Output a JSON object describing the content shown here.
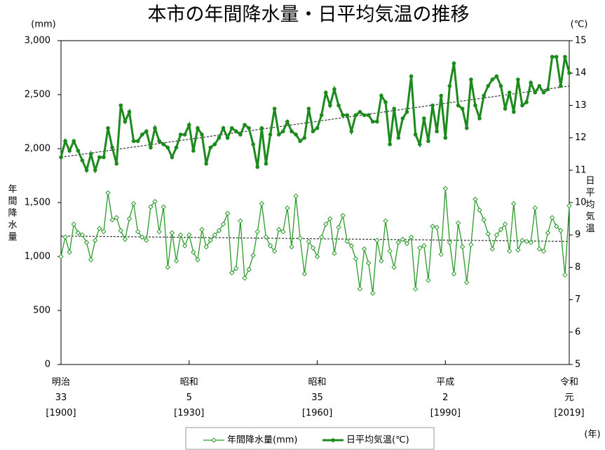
{
  "chart_data": {
    "type": "line",
    "title": "本市の年間降水量・日平均気温の推移",
    "y_unit": "(mm)",
    "y2_unit": "(℃)",
    "x_unit": "(年)",
    "ylabel": "年間降水量",
    "y2label": "日平均気温",
    "x": [
      1900,
      1901,
      1902,
      1903,
      1904,
      1905,
      1906,
      1907,
      1908,
      1909,
      1910,
      1911,
      1912,
      1913,
      1914,
      1915,
      1916,
      1917,
      1918,
      1919,
      1920,
      1921,
      1922,
      1923,
      1924,
      1925,
      1926,
      1927,
      1928,
      1929,
      1930,
      1931,
      1932,
      1933,
      1934,
      1935,
      1936,
      1937,
      1938,
      1939,
      1940,
      1941,
      1942,
      1943,
      1944,
      1945,
      1946,
      1947,
      1948,
      1949,
      1950,
      1951,
      1952,
      1953,
      1954,
      1955,
      1956,
      1957,
      1958,
      1959,
      1960,
      1961,
      1962,
      1963,
      1964,
      1965,
      1966,
      1967,
      1968,
      1969,
      1970,
      1971,
      1972,
      1973,
      1974,
      1975,
      1976,
      1977,
      1978,
      1979,
      1980,
      1981,
      1982,
      1983,
      1984,
      1985,
      1986,
      1987,
      1988,
      1989,
      1990,
      1991,
      1992,
      1993,
      1994,
      1995,
      1996,
      1997,
      1998,
      1999,
      2000,
      2001,
      2002,
      2003,
      2004,
      2005,
      2006,
      2007,
      2008,
      2009,
      2010,
      2011,
      2012,
      2013,
      2014,
      2015,
      2016,
      2017,
      2018,
      2019
    ],
    "xlim": [
      1900,
      2019
    ],
    "xticks": [
      {
        "value": 1900,
        "label": "明治\n33\n[1900]"
      },
      {
        "value": 1930,
        "label": "昭和\n5\n[1930]"
      },
      {
        "value": 1960,
        "label": "昭和\n35\n[1960]"
      },
      {
        "value": 1990,
        "label": "平成\n2\n[1990]"
      },
      {
        "value": 2019,
        "label": "令和\n元\n[2019]"
      }
    ],
    "ylim": [
      0,
      3000
    ],
    "yticks": [
      0,
      500,
      {
        "value": 1000,
        "label": "1,000"
      },
      {
        "value": 1500,
        "label": "1,500"
      },
      {
        "value": 2000,
        "label": "2,000"
      },
      {
        "value": 2500,
        "label": "2,500"
      },
      {
        "value": 3000,
        "label": "3,000"
      }
    ],
    "y2lim": [
      5,
      15
    ],
    "y2ticks": [
      5,
      6,
      7,
      8,
      9,
      10,
      11,
      12,
      13,
      14,
      15
    ],
    "series": [
      {
        "name": "年間降水量(mm)",
        "color": "#2a9a2a",
        "marker": "diamond",
        "trend": [
          1190,
          1140
        ],
        "values": [
          1000,
          1180,
          1040,
          1300,
          1220,
          1200,
          1130,
          970,
          1150,
          1260,
          1230,
          1590,
          1340,
          1360,
          1240,
          1160,
          1350,
          1490,
          1230,
          1180,
          1150,
          1460,
          1510,
          1230,
          1460,
          900,
          1220,
          960,
          1200,
          1100,
          1200,
          1040,
          970,
          1250,
          1090,
          1150,
          1200,
          1240,
          1300,
          1400,
          850,
          890,
          1330,
          800,
          880,
          1010,
          1230,
          1490,
          1180,
          1100,
          1050,
          1250,
          1230,
          1450,
          1090,
          1560,
          1170,
          840,
          1140,
          1080,
          1000,
          1180,
          1300,
          1350,
          1030,
          1270,
          1380,
          1140,
          1100,
          980,
          700,
          1070,
          940,
          660,
          1150,
          960,
          1330,
          1050,
          900,
          1130,
          1160,
          1120,
          1180,
          700,
          1080,
          1100,
          780,
          1280,
          1270,
          1020,
          1630,
          1130,
          840,
          1310,
          1090,
          760,
          1110,
          1530,
          1430,
          1340,
          1210,
          1070,
          1200,
          1250,
          1300,
          1050,
          1490,
          1060,
          1150,
          1140,
          1130,
          1450,
          1070,
          1050,
          1220,
          1360,
          1280,
          1240,
          830,
          1470
        ]
      },
      {
        "name": "日平均気温(℃)",
        "color": "#1c8a1c",
        "marker": "circle",
        "axis": "y2",
        "trend": [
          11.4,
          13.6
        ],
        "values": [
          11.4,
          11.9,
          11.6,
          11.9,
          11.6,
          11.3,
          11.0,
          11.5,
          11.0,
          11.4,
          11.4,
          12.3,
          11.7,
          11.2,
          13.0,
          12.5,
          12.8,
          11.9,
          11.9,
          12.1,
          12.2,
          11.7,
          12.3,
          11.9,
          11.8,
          11.7,
          11.4,
          11.7,
          12.1,
          12.1,
          12.4,
          11.6,
          12.3,
          12.1,
          11.2,
          11.7,
          11.8,
          12.0,
          12.3,
          12.0,
          12.3,
          12.2,
          12.1,
          12.4,
          12.3,
          11.8,
          11.1,
          12.3,
          11.2,
          12.1,
          12.9,
          12.1,
          12.2,
          12.5,
          12.2,
          12.1,
          11.9,
          12.0,
          12.9,
          12.2,
          12.3,
          12.7,
          13.4,
          13.0,
          13.5,
          13.0,
          12.7,
          12.7,
          12.2,
          12.7,
          12.8,
          12.7,
          12.7,
          12.5,
          12.5,
          13.3,
          13.1,
          11.8,
          12.9,
          12.0,
          12.6,
          12.8,
          13.9,
          12.1,
          11.8,
          12.6,
          11.9,
          13.0,
          12.2,
          13.3,
          12.0,
          13.6,
          14.3,
          13.0,
          12.9,
          12.3,
          13.8,
          13.0,
          12.6,
          13.3,
          13.6,
          13.8,
          13.9,
          13.6,
          12.9,
          13.4,
          12.8,
          13.8,
          13.0,
          13.1,
          13.7,
          13.4,
          13.6,
          13.4,
          13.5,
          14.5,
          14.5,
          13.6,
          14.5,
          14.0
        ]
      }
    ]
  }
}
